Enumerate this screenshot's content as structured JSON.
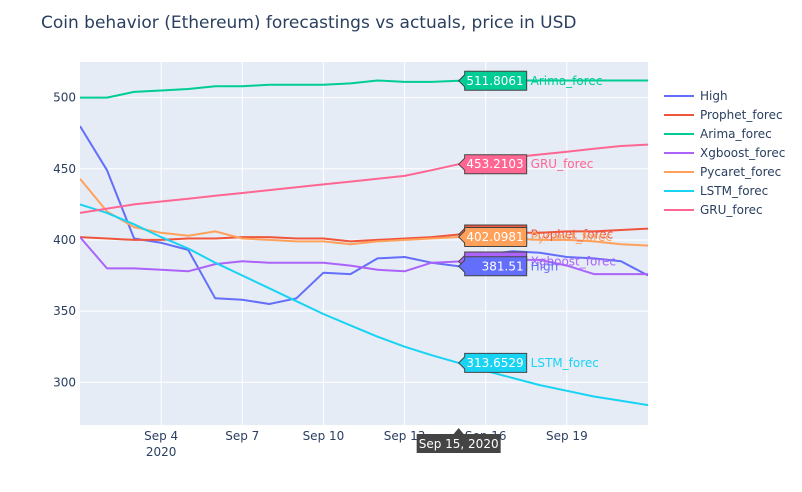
{
  "chart_data": {
    "type": "line",
    "title": "Coin behavior (Ethereum) forecastings vs actuals, price in USD",
    "xlabel": "",
    "ylabel": "",
    "x_axis": {
      "start": "2020-09-01",
      "end": "2020-09-22",
      "ticks": [
        {
          "date": "2020-09-04",
          "label": "Sep 4",
          "sub": "2020"
        },
        {
          "date": "2020-09-07",
          "label": "Sep 7",
          "sub": ""
        },
        {
          "date": "2020-09-10",
          "label": "Sep 10",
          "sub": ""
        },
        {
          "date": "2020-09-13",
          "label": "Sep 13",
          "sub": ""
        },
        {
          "date": "2020-09-16",
          "label": "Sep 16",
          "sub": ""
        },
        {
          "date": "2020-09-19",
          "label": "Sep 19",
          "sub": ""
        }
      ]
    },
    "ylim": [
      270,
      525
    ],
    "y_ticks": [
      300,
      350,
      400,
      450,
      500
    ],
    "grid": true,
    "legend_position": "right",
    "hover": {
      "date": "2020-09-15",
      "label": "Sep 15, 2020",
      "values": [
        {
          "series": "Arima_forec",
          "text": "511.8061",
          "suffix": "Arima_forec"
        },
        {
          "series": "GRU_forec",
          "text": "453.2103",
          "suffix": "GRU_forec"
        },
        {
          "series": "Prophet_forec",
          "text": "403.8558",
          "suffix": "Prophet_forec"
        },
        {
          "series": "Pycaret_forec",
          "text": "402.0981",
          "suffix": "Pycaret_forec"
        },
        {
          "series": "Xgboost_forec",
          "text": "384.8697",
          "suffix": "Xgboost_forec"
        },
        {
          "series": "High",
          "text": "381.51",
          "suffix": "High"
        },
        {
          "series": "LSTM_forec",
          "text": "313.6529",
          "suffix": "LSTM_forec"
        }
      ]
    },
    "series": [
      {
        "name": "High",
        "color": "#636efa",
        "points": [
          [
            "2020-09-01",
            480
          ],
          [
            "2020-09-02",
            449
          ],
          [
            "2020-09-03",
            401
          ],
          [
            "2020-09-04",
            398
          ],
          [
            "2020-09-05",
            393
          ],
          [
            "2020-09-06",
            359
          ],
          [
            "2020-09-07",
            358
          ],
          [
            "2020-09-08",
            355
          ],
          [
            "2020-09-09",
            359
          ],
          [
            "2020-09-10",
            377
          ],
          [
            "2020-09-11",
            376
          ],
          [
            "2020-09-12",
            387
          ],
          [
            "2020-09-13",
            388
          ],
          [
            "2020-09-14",
            384
          ],
          [
            "2020-09-15",
            381.51
          ],
          [
            "2020-09-16",
            390
          ],
          [
            "2020-09-17",
            392
          ],
          [
            "2020-09-18",
            391
          ],
          [
            "2020-09-19",
            388
          ],
          [
            "2020-09-20",
            387
          ],
          [
            "2020-09-21",
            385
          ],
          [
            "2020-09-22",
            375
          ]
        ]
      },
      {
        "name": "Prophet_forec",
        "color": "#ef553b",
        "points": [
          [
            "2020-09-01",
            402
          ],
          [
            "2020-09-02",
            401
          ],
          [
            "2020-09-03",
            400
          ],
          [
            "2020-09-04",
            400
          ],
          [
            "2020-09-05",
            401
          ],
          [
            "2020-09-06",
            401
          ],
          [
            "2020-09-07",
            402
          ],
          [
            "2020-09-08",
            402
          ],
          [
            "2020-09-09",
            401
          ],
          [
            "2020-09-10",
            401
          ],
          [
            "2020-09-11",
            399
          ],
          [
            "2020-09-12",
            400
          ],
          [
            "2020-09-13",
            401
          ],
          [
            "2020-09-14",
            402
          ],
          [
            "2020-09-15",
            403.8558
          ],
          [
            "2020-09-16",
            404
          ],
          [
            "2020-09-17",
            405
          ],
          [
            "2020-09-18",
            405
          ],
          [
            "2020-09-19",
            406
          ],
          [
            "2020-09-20",
            406
          ],
          [
            "2020-09-21",
            407
          ],
          [
            "2020-09-22",
            408
          ]
        ]
      },
      {
        "name": "Arima_forec",
        "color": "#00cc96",
        "points": [
          [
            "2020-09-01",
            500
          ],
          [
            "2020-09-02",
            500
          ],
          [
            "2020-09-03",
            504
          ],
          [
            "2020-09-04",
            505
          ],
          [
            "2020-09-05",
            506
          ],
          [
            "2020-09-06",
            508
          ],
          [
            "2020-09-07",
            508
          ],
          [
            "2020-09-08",
            509
          ],
          [
            "2020-09-09",
            509
          ],
          [
            "2020-09-10",
            509
          ],
          [
            "2020-09-11",
            510
          ],
          [
            "2020-09-12",
            512
          ],
          [
            "2020-09-13",
            511
          ],
          [
            "2020-09-14",
            511
          ],
          [
            "2020-09-15",
            511.8061
          ],
          [
            "2020-09-16",
            511
          ],
          [
            "2020-09-17",
            512
          ],
          [
            "2020-09-18",
            512
          ],
          [
            "2020-09-19",
            512
          ],
          [
            "2020-09-20",
            512
          ],
          [
            "2020-09-21",
            512
          ],
          [
            "2020-09-22",
            512
          ]
        ]
      },
      {
        "name": "Xgboost_forec",
        "color": "#ab63fa",
        "points": [
          [
            "2020-09-01",
            402
          ],
          [
            "2020-09-02",
            380
          ],
          [
            "2020-09-03",
            380
          ],
          [
            "2020-09-04",
            379
          ],
          [
            "2020-09-05",
            378
          ],
          [
            "2020-09-06",
            383
          ],
          [
            "2020-09-07",
            385
          ],
          [
            "2020-09-08",
            384
          ],
          [
            "2020-09-09",
            384
          ],
          [
            "2020-09-10",
            384
          ],
          [
            "2020-09-11",
            382
          ],
          [
            "2020-09-12",
            379
          ],
          [
            "2020-09-13",
            378
          ],
          [
            "2020-09-14",
            384
          ],
          [
            "2020-09-15",
            384.8697
          ],
          [
            "2020-09-16",
            386
          ],
          [
            "2020-09-17",
            386
          ],
          [
            "2020-09-18",
            386
          ],
          [
            "2020-09-19",
            382
          ],
          [
            "2020-09-20",
            376
          ],
          [
            "2020-09-21",
            376
          ],
          [
            "2020-09-22",
            376
          ]
        ]
      },
      {
        "name": "Pycaret_forec",
        "color": "#ffa15a",
        "points": [
          [
            "2020-09-01",
            443
          ],
          [
            "2020-09-02",
            420
          ],
          [
            "2020-09-03",
            409
          ],
          [
            "2020-09-04",
            405
          ],
          [
            "2020-09-05",
            403
          ],
          [
            "2020-09-06",
            406
          ],
          [
            "2020-09-07",
            401
          ],
          [
            "2020-09-08",
            400
          ],
          [
            "2020-09-09",
            399
          ],
          [
            "2020-09-10",
            399
          ],
          [
            "2020-09-11",
            397
          ],
          [
            "2020-09-12",
            399
          ],
          [
            "2020-09-13",
            400
          ],
          [
            "2020-09-14",
            401
          ],
          [
            "2020-09-15",
            402.0981
          ],
          [
            "2020-09-16",
            401
          ],
          [
            "2020-09-17",
            401
          ],
          [
            "2020-09-18",
            400
          ],
          [
            "2020-09-19",
            400
          ],
          [
            "2020-09-20",
            399
          ],
          [
            "2020-09-21",
            397
          ],
          [
            "2020-09-22",
            396
          ]
        ]
      },
      {
        "name": "LSTM_forec",
        "color": "#19d3f3",
        "points": [
          [
            "2020-09-01",
            425
          ],
          [
            "2020-09-02",
            419
          ],
          [
            "2020-09-03",
            411
          ],
          [
            "2020-09-04",
            402
          ],
          [
            "2020-09-05",
            394
          ],
          [
            "2020-09-06",
            384
          ],
          [
            "2020-09-07",
            375
          ],
          [
            "2020-09-08",
            366
          ],
          [
            "2020-09-09",
            357
          ],
          [
            "2020-09-10",
            348
          ],
          [
            "2020-09-11",
            340
          ],
          [
            "2020-09-12",
            332
          ],
          [
            "2020-09-13",
            325
          ],
          [
            "2020-09-14",
            319
          ],
          [
            "2020-09-15",
            313.6529
          ],
          [
            "2020-09-16",
            308
          ],
          [
            "2020-09-17",
            303
          ],
          [
            "2020-09-18",
            298
          ],
          [
            "2020-09-19",
            294
          ],
          [
            "2020-09-20",
            290
          ],
          [
            "2020-09-21",
            287
          ],
          [
            "2020-09-22",
            284
          ]
        ]
      },
      {
        "name": "GRU_forec",
        "color": "#ff6692",
        "points": [
          [
            "2020-09-01",
            419
          ],
          [
            "2020-09-02",
            422
          ],
          [
            "2020-09-03",
            425
          ],
          [
            "2020-09-04",
            427
          ],
          [
            "2020-09-05",
            429
          ],
          [
            "2020-09-06",
            431
          ],
          [
            "2020-09-07",
            433
          ],
          [
            "2020-09-08",
            435
          ],
          [
            "2020-09-09",
            437
          ],
          [
            "2020-09-10",
            439
          ],
          [
            "2020-09-11",
            441
          ],
          [
            "2020-09-12",
            443
          ],
          [
            "2020-09-13",
            445
          ],
          [
            "2020-09-14",
            449
          ],
          [
            "2020-09-15",
            453.2103
          ],
          [
            "2020-09-16",
            455
          ],
          [
            "2020-09-17",
            458
          ],
          [
            "2020-09-18",
            460
          ],
          [
            "2020-09-19",
            462
          ],
          [
            "2020-09-20",
            464
          ],
          [
            "2020-09-21",
            466
          ],
          [
            "2020-09-22",
            467
          ]
        ]
      }
    ]
  }
}
